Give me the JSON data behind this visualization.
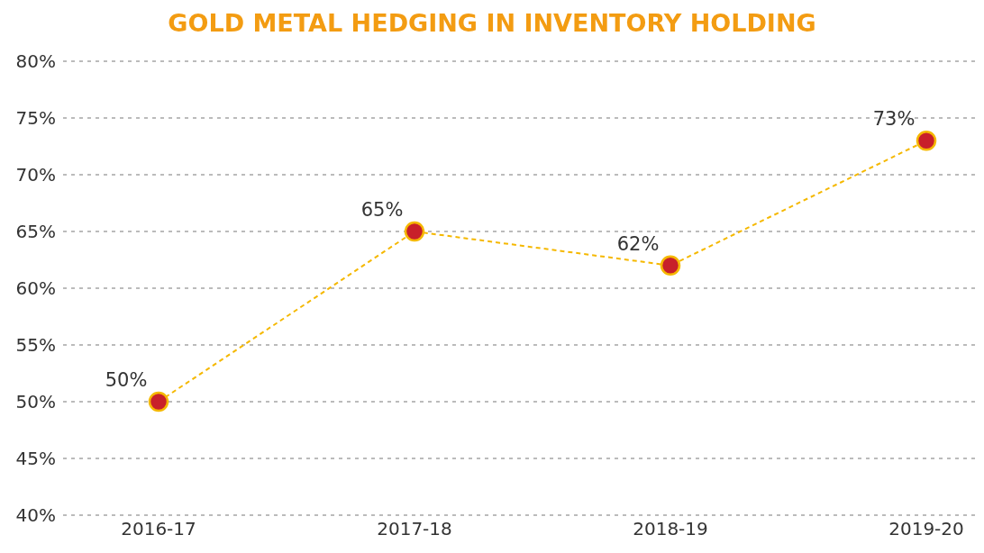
{
  "chart_data": {
    "type": "line",
    "title": "GOLD METAL HEDGING IN INVENTORY HOLDING",
    "categories": [
      "2016-17",
      "2017-18",
      "2018-19",
      "2019-20"
    ],
    "series": [
      {
        "color": "#f5b800",
        "colors": [
          "#c8202a",
          "#c8202a",
          "#c8202a",
          "#c8202a"
        ],
        "values": [
          50,
          65,
          62,
          73
        ],
        "value_labels": [
          "50%",
          "65%",
          "62%",
          "73%"
        ]
      }
    ],
    "ylim": [
      40,
      80
    ],
    "yticks": [
      {
        "value": 40,
        "label": "40%"
      },
      {
        "value": 45,
        "label": "45%"
      },
      {
        "value": 50,
        "label": "50%"
      },
      {
        "value": 55,
        "label": "55%"
      },
      {
        "value": 60,
        "label": "60%"
      },
      {
        "value": 65,
        "label": "65%"
      },
      {
        "value": 70,
        "label": "70%"
      },
      {
        "value": 75,
        "label": "75%"
      },
      {
        "value": 80,
        "label": "80%"
      }
    ],
    "grid": "y",
    "marker": "circle",
    "line_style": "dashed"
  }
}
